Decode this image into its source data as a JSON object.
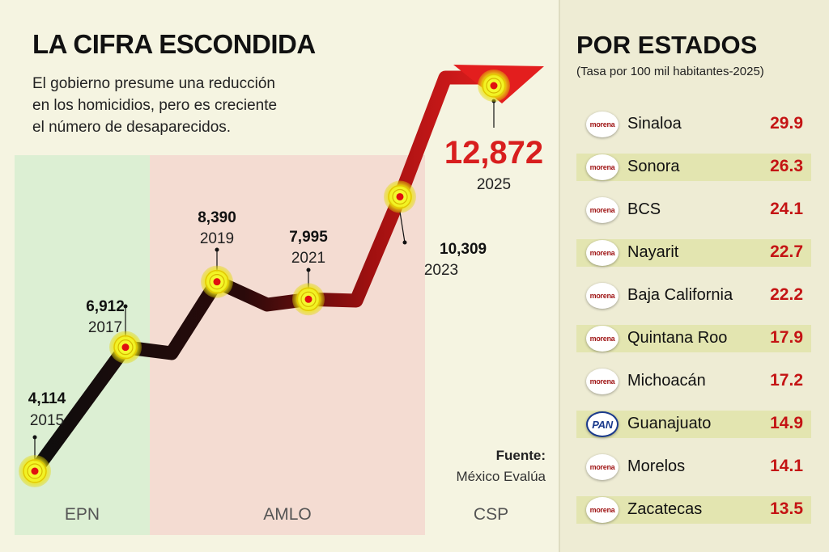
{
  "header": {
    "title": "LA CIFRA ESCONDIDA",
    "subtitle_lines": [
      "El gobierno presume una reducción",
      "en los homicidios, pero es creciente",
      "el número de desaparecidos."
    ]
  },
  "chart_data": {
    "type": "line",
    "title": "LA CIFRA ESCONDIDA",
    "x": [
      2015,
      2017,
      2019,
      2021,
      2023,
      2025
    ],
    "series": [
      {
        "name": "Desaparecidos",
        "values": [
          4114,
          6912,
          8390,
          7995,
          10309,
          12872
        ]
      }
    ],
    "point_labels": [
      {
        "value": "4,114",
        "year": "2015"
      },
      {
        "value": "6,912",
        "year": "2017"
      },
      {
        "value": "8,390",
        "year": "2019"
      },
      {
        "value": "7,995",
        "year": "2021"
      },
      {
        "value": "10,309",
        "year": "2023"
      },
      {
        "value": "12,872",
        "year": "2025"
      }
    ],
    "periods": [
      {
        "label": "EPN",
        "color": "#dcefd3"
      },
      {
        "label": "AMLO",
        "color": "#f4dcd2"
      },
      {
        "label": "CSP",
        "color": "#f5f4e1"
      }
    ],
    "source_label": "Fuente:",
    "source": "México Evalúa",
    "ylim": [
      4000,
      13500
    ]
  },
  "colors": {
    "red": "#c41414",
    "dark": "#1a0a0a",
    "accent": "#d81e1e"
  },
  "states_panel": {
    "title": "POR ESTADOS",
    "subtitle": "(Tasa por 100 mil habitantes-2025)",
    "rows": [
      {
        "party": "morena",
        "name": "Sinaloa",
        "value": "29.9"
      },
      {
        "party": "morena",
        "name": "Sonora",
        "value": "26.3"
      },
      {
        "party": "morena",
        "name": "BCS",
        "value": "24.1"
      },
      {
        "party": "morena",
        "name": "Nayarit",
        "value": "22.7"
      },
      {
        "party": "morena",
        "name": "Baja California",
        "value": "22.2"
      },
      {
        "party": "morena",
        "name": "Quintana Roo",
        "value": "17.9"
      },
      {
        "party": "morena",
        "name": "Michoacán",
        "value": "17.2"
      },
      {
        "party": "PAN",
        "name": "Guanajuato",
        "value": "14.9"
      },
      {
        "party": "morena",
        "name": "Morelos",
        "value": "14.1"
      },
      {
        "party": "morena",
        "name": "Zacatecas",
        "value": "13.5"
      }
    ]
  }
}
